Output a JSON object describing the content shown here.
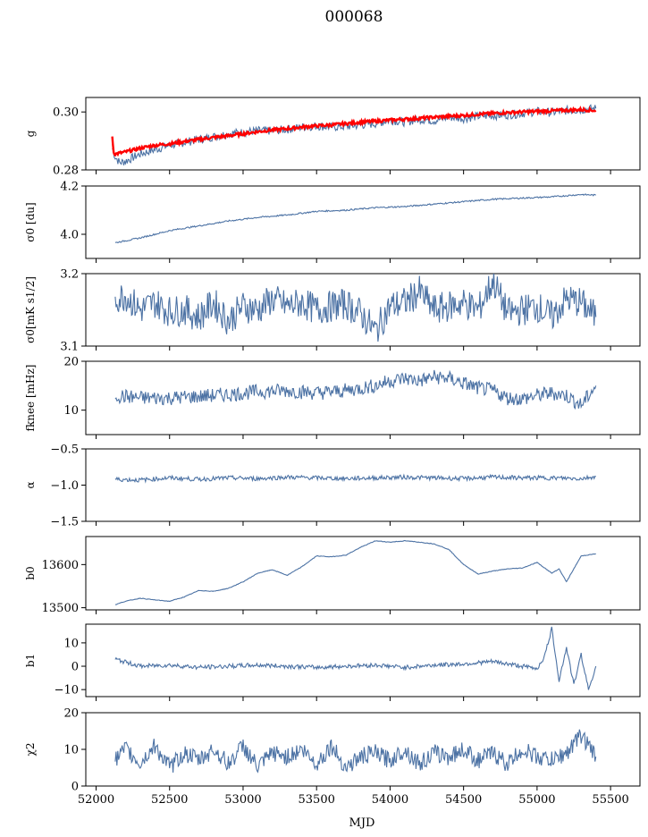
{
  "title": "000068",
  "xlabel": "MJD",
  "x_ticks": [
    52000,
    52500,
    53000,
    53500,
    54000,
    54500,
    55000,
    55500
  ],
  "colors": {
    "series": "#4c72a4",
    "fit": "#ff0000",
    "axis": "#000000"
  },
  "chart_data": [
    {
      "type": "line",
      "id": "g",
      "ylabel": "g",
      "ylim": [
        0.28,
        0.305
      ],
      "yticks": [
        0.28,
        0.3
      ],
      "ytick_labels": [
        "0.28",
        "0.30"
      ],
      "series": [
        {
          "name": "g",
          "style": "measured",
          "x": [
            52110,
            52130,
            52160,
            52200,
            52300,
            52400,
            52500,
            52600,
            52700,
            52800,
            52900,
            53000,
            53100,
            53200,
            53300,
            53400,
            53500,
            53600,
            53700,
            53800,
            53900,
            54000,
            54100,
            54200,
            54300,
            54400,
            54500,
            54600,
            54700,
            54800,
            54900,
            55000,
            55100,
            55200,
            55300,
            55400
          ],
          "y": [
            0.2875,
            0.2845,
            0.2825,
            0.283,
            0.2855,
            0.287,
            0.2885,
            0.2895,
            0.2905,
            0.2915,
            0.2925,
            0.293,
            0.2935,
            0.2935,
            0.294,
            0.2948,
            0.2952,
            0.2948,
            0.295,
            0.2955,
            0.296,
            0.2972,
            0.2965,
            0.2975,
            0.297,
            0.2982,
            0.2978,
            0.2985,
            0.2988,
            0.299,
            0.2995,
            0.3002,
            0.2998,
            0.3005,
            0.3008,
            0.3012
          ]
        },
        {
          "name": "g fit",
          "style": "fit",
          "x": [
            52110,
            52120,
            52130,
            52200,
            52300,
            52400,
            52500,
            52600,
            52700,
            52800,
            52900,
            53000,
            53100,
            53200,
            53300,
            53400,
            53500,
            53600,
            53700,
            53800,
            53900,
            54000,
            54100,
            54200,
            54300,
            54400,
            54500,
            54600,
            54700,
            54800,
            54900,
            55000,
            55100,
            55200,
            55300,
            55400
          ],
          "y": [
            0.2915,
            0.286,
            0.2855,
            0.2862,
            0.2875,
            0.2885,
            0.289,
            0.2898,
            0.2905,
            0.2912,
            0.2918,
            0.2925,
            0.2932,
            0.2938,
            0.2942,
            0.2948,
            0.2952,
            0.2955,
            0.296,
            0.2965,
            0.2968,
            0.2972,
            0.2975,
            0.2978,
            0.2982,
            0.2985,
            0.2988,
            0.2992,
            0.2995,
            0.2998,
            0.3,
            0.3002,
            0.3004,
            0.3006,
            0.3008,
            0.3005
          ]
        }
      ]
    },
    {
      "type": "line",
      "id": "sigma0-du",
      "ylabel": "σ0 [du]",
      "ylim": [
        3.9,
        4.2
      ],
      "yticks": [
        4.0,
        4.2
      ],
      "ytick_labels": [
        "4.0",
        "4.2"
      ],
      "series": [
        {
          "name": "σ0 [du]",
          "x": [
            52130,
            52300,
            52500,
            52700,
            52900,
            53100,
            53300,
            53500,
            53700,
            53900,
            54100,
            54300,
            54500,
            54700,
            54900,
            55100,
            55300,
            55400
          ],
          "y": [
            3.965,
            3.985,
            4.015,
            4.035,
            4.055,
            4.07,
            4.08,
            4.095,
            4.1,
            4.11,
            4.115,
            4.125,
            4.135,
            4.145,
            4.15,
            4.155,
            4.165,
            4.162
          ]
        }
      ]
    },
    {
      "type": "line",
      "id": "sigma0-mk",
      "ylabel": "σ0[mK s1/2]",
      "ylim": [
        3.1,
        3.2
      ],
      "yticks": [
        3.1,
        3.2
      ],
      "ytick_labels": [
        "3.1",
        "3.2"
      ],
      "series": [
        {
          "name": "σ0[mK s1/2]",
          "x": [
            52130,
            52200,
            52300,
            52400,
            52500,
            52600,
            52700,
            52800,
            52900,
            53000,
            53100,
            53200,
            53300,
            53400,
            53500,
            53600,
            53700,
            53800,
            53900,
            54000,
            54100,
            54200,
            54300,
            54400,
            54500,
            54600,
            54700,
            54800,
            54900,
            55000,
            55100,
            55200,
            55300,
            55400
          ],
          "y": [
            3.165,
            3.17,
            3.15,
            3.16,
            3.148,
            3.15,
            3.14,
            3.16,
            3.135,
            3.155,
            3.15,
            3.165,
            3.155,
            3.16,
            3.15,
            3.155,
            3.158,
            3.145,
            3.12,
            3.155,
            3.16,
            3.175,
            3.15,
            3.155,
            3.16,
            3.15,
            3.19,
            3.145,
            3.15,
            3.155,
            3.14,
            3.165,
            3.16,
            3.14
          ]
        }
      ]
    },
    {
      "type": "line",
      "id": "fknee",
      "ylabel": "fknee [mHz]",
      "ylim": [
        5,
        20
      ],
      "yticks": [
        10,
        20
      ],
      "ytick_labels": [
        "10",
        "20"
      ],
      "series": [
        {
          "name": "fknee [mHz]",
          "x": [
            52130,
            52300,
            52500,
            52700,
            52900,
            53100,
            53300,
            53500,
            53700,
            53900,
            54000,
            54100,
            54200,
            54300,
            54400,
            54500,
            54600,
            54700,
            54800,
            54900,
            55000,
            55100,
            55200,
            55300,
            55400
          ],
          "y": [
            13,
            12.5,
            12.5,
            12.8,
            13.2,
            13.8,
            14,
            13.5,
            14,
            15,
            16,
            16.5,
            16,
            16.8,
            16.5,
            15.5,
            14.5,
            14,
            12.5,
            12.3,
            13,
            13.5,
            13,
            11,
            15
          ]
        }
      ]
    },
    {
      "type": "line",
      "id": "alpha",
      "ylabel": "α",
      "ylim": [
        -1.5,
        -0.5
      ],
      "yticks": [
        -1.5,
        -1.0,
        -0.5
      ],
      "ytick_labels": [
        "−1.5",
        "−1.0",
        "−0.5"
      ],
      "series": [
        {
          "name": "α",
          "x": [
            52130,
            52300,
            52500,
            52700,
            52900,
            53100,
            53300,
            53500,
            53700,
            53900,
            54100,
            54300,
            54500,
            54700,
            54900,
            55100,
            55300,
            55400
          ],
          "y": [
            -0.92,
            -0.93,
            -0.9,
            -0.92,
            -0.9,
            -0.91,
            -0.89,
            -0.9,
            -0.91,
            -0.9,
            -0.89,
            -0.9,
            -0.91,
            -0.89,
            -0.9,
            -0.9,
            -0.91,
            -0.88
          ]
        }
      ]
    },
    {
      "type": "line",
      "id": "b0",
      "ylabel": "b0",
      "ylim": [
        13495,
        13665
      ],
      "yticks": [
        13500,
        13600
      ],
      "ytick_labels": [
        "13500",
        "13600"
      ],
      "series": [
        {
          "name": "b0",
          "x": [
            52130,
            52200,
            52300,
            52400,
            52500,
            52600,
            52700,
            52800,
            52900,
            53000,
            53100,
            53200,
            53300,
            53400,
            53500,
            53600,
            53700,
            53800,
            53900,
            54000,
            54100,
            54200,
            54300,
            54400,
            54500,
            54600,
            54700,
            54800,
            54900,
            55000,
            55100,
            55150,
            55200,
            55300,
            55400
          ],
          "y": [
            13507,
            13515,
            13522,
            13518,
            13515,
            13525,
            13540,
            13538,
            13545,
            13560,
            13580,
            13588,
            13575,
            13595,
            13620,
            13618,
            13622,
            13640,
            13655,
            13652,
            13655,
            13652,
            13648,
            13635,
            13600,
            13578,
            13585,
            13590,
            13592,
            13605,
            13580,
            13590,
            13560,
            13620,
            13625
          ]
        }
      ]
    },
    {
      "type": "line",
      "id": "b1",
      "ylabel": "b1",
      "ylim": [
        -13,
        18
      ],
      "yticks": [
        -10,
        0,
        10
      ],
      "ytick_labels": [
        "−10",
        "0",
        "10"
      ],
      "series": [
        {
          "name": "b1",
          "x": [
            52130,
            52300,
            52500,
            52700,
            52900,
            53100,
            53300,
            53500,
            53700,
            53900,
            54100,
            54300,
            54500,
            54700,
            54900,
            55000,
            55050,
            55100,
            55150,
            55200,
            55250,
            55300,
            55350,
            55400
          ],
          "y": [
            3,
            0,
            0.5,
            -0.5,
            0,
            0.5,
            0,
            -0.5,
            0,
            0.5,
            -0.5,
            0.5,
            1,
            2,
            0,
            -1,
            4,
            16,
            -6,
            8,
            -8,
            5,
            -10,
            0
          ]
        }
      ]
    },
    {
      "type": "line",
      "id": "chi2",
      "ylabel": "χ2",
      "ylim": [
        0,
        20
      ],
      "yticks": [
        0,
        10,
        20
      ],
      "ytick_labels": [
        "0",
        "10",
        "20"
      ],
      "series": [
        {
          "name": "χ2",
          "x": [
            52130,
            52200,
            52300,
            52400,
            52500,
            52600,
            52700,
            52800,
            52900,
            53000,
            53100,
            53200,
            53300,
            53400,
            53500,
            53600,
            53700,
            53800,
            53900,
            54000,
            54100,
            54200,
            54300,
            54400,
            54500,
            54600,
            54700,
            54800,
            54900,
            55000,
            55100,
            55200,
            55300,
            55400
          ],
          "y": [
            7,
            10,
            6,
            11,
            5,
            9,
            7,
            10,
            6,
            11,
            5,
            9,
            8,
            10,
            6,
            11,
            5,
            8,
            9,
            7,
            10,
            6,
            9,
            8,
            10,
            7,
            9,
            6,
            10,
            8,
            7,
            9,
            14,
            8
          ]
        }
      ]
    }
  ]
}
